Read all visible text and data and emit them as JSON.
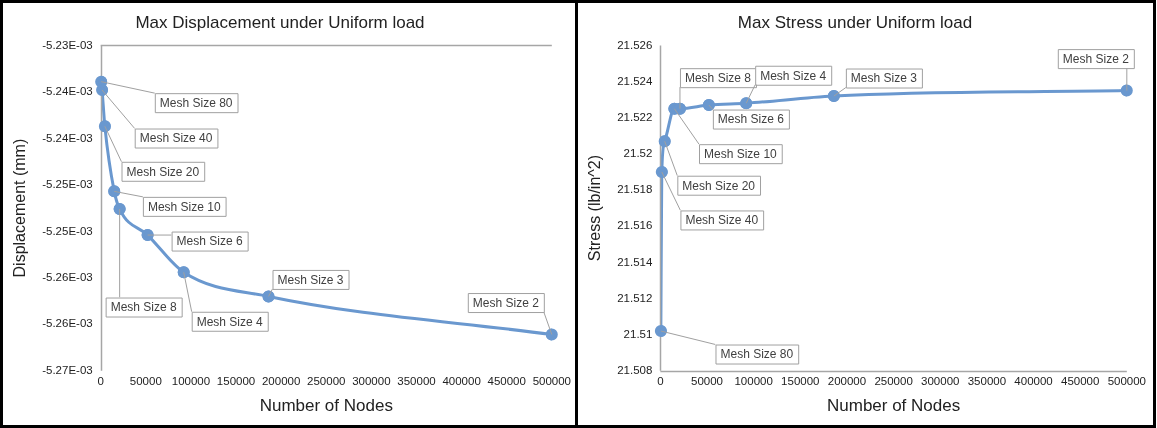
{
  "chart_data": [
    {
      "type": "line",
      "title": "Max Displacement under Uniform load",
      "xlabel": "Number of Nodes",
      "ylabel": "Displacement (mm)",
      "x": [
        500,
        1500,
        4600,
        15000,
        21000,
        52000,
        92000,
        186000,
        500000
      ],
      "series": [
        {
          "color": "#6a98cf",
          "values": [
            -0.0052339,
            -0.0052348,
            -0.0052387,
            -0.0052457,
            -0.0052476,
            -0.0052504,
            -0.0052544,
            -0.005257,
            -0.0052611
          ]
        }
      ],
      "xlim": [
        0,
        500000
      ],
      "xticks": [
        0,
        50000,
        100000,
        150000,
        200000,
        250000,
        300000,
        350000,
        400000,
        450000,
        500000
      ],
      "ylim": [
        -0.005265,
        -0.00523
      ],
      "yticks": [
        {
          "value": -0.00523,
          "label": "-5.23E-03"
        },
        {
          "value": -0.005235,
          "label": "-5.24E-03"
        },
        {
          "value": -0.00524,
          "label": "-5.24E-03"
        },
        {
          "value": -0.005245,
          "label": "-5.25E-03"
        },
        {
          "value": -0.00525,
          "label": "-5.25E-03"
        },
        {
          "value": -0.005255,
          "label": "-5.26E-03"
        },
        {
          "value": -0.00526,
          "label": "-5.26E-03"
        },
        {
          "value": -0.005265,
          "label": "-5.27E-03"
        }
      ],
      "marker": "circle",
      "legend": false,
      "grid": false,
      "annotations": [
        {
          "text": "Mesh Size 80",
          "x": 500,
          "y": -0.0052339
        },
        {
          "text": "Mesh Size 40",
          "x": 1500,
          "y": -0.0052348
        },
        {
          "text": "Mesh Size 20",
          "x": 4600,
          "y": -0.0052387
        },
        {
          "text": "Mesh Size 10",
          "x": 15000,
          "y": -0.0052457
        },
        {
          "text": "Mesh Size 8",
          "x": 21000,
          "y": -0.0052476
        },
        {
          "text": "Mesh Size 6",
          "x": 52000,
          "y": -0.0052504
        },
        {
          "text": "Mesh Size 4",
          "x": 92000,
          "y": -0.0052544
        },
        {
          "text": "Mesh Size 3",
          "x": 186000,
          "y": -0.005257
        },
        {
          "text": "Mesh Size 2",
          "x": 500000,
          "y": -0.0052611
        }
      ]
    },
    {
      "type": "line",
      "title": "Max Stress under Uniform load",
      "xlabel": "Number of Nodes",
      "ylabel": "Stress (lb/in^2)",
      "x": [
        500,
        1500,
        4600,
        15000,
        21000,
        52000,
        92000,
        186000,
        500000
      ],
      "series": [
        {
          "color": "#6a98cf",
          "values": [
            21.5102,
            21.519,
            21.5207,
            21.5225,
            21.5225,
            21.5227,
            21.5228,
            21.5232,
            21.5235
          ]
        }
      ],
      "xlim": [
        0,
        500000
      ],
      "xticks": [
        0,
        50000,
        100000,
        150000,
        200000,
        250000,
        300000,
        350000,
        400000,
        450000,
        500000
      ],
      "ylim": [
        21.508,
        21.526
      ],
      "yticks": [
        {
          "value": 21.508,
          "label": "21.508"
        },
        {
          "value": 21.51,
          "label": "21.51"
        },
        {
          "value": 21.512,
          "label": "21.512"
        },
        {
          "value": 21.514,
          "label": "21.514"
        },
        {
          "value": 21.516,
          "label": "21.516"
        },
        {
          "value": 21.518,
          "label": "21.518"
        },
        {
          "value": 21.52,
          "label": "21.52"
        },
        {
          "value": 21.522,
          "label": "21.522"
        },
        {
          "value": 21.524,
          "label": "21.524"
        },
        {
          "value": 21.526,
          "label": "21.526"
        }
      ],
      "marker": "circle",
      "legend": false,
      "grid": false,
      "annotations": [
        {
          "text": "Mesh Size 80",
          "x": 500,
          "y": 21.5102
        },
        {
          "text": "Mesh Size 40",
          "x": 1500,
          "y": 21.519
        },
        {
          "text": "Mesh Size 20",
          "x": 4600,
          "y": 21.5207
        },
        {
          "text": "Mesh Size 10",
          "x": 15000,
          "y": 21.5225
        },
        {
          "text": "Mesh Size 8",
          "x": 21000,
          "y": 21.5225
        },
        {
          "text": "Mesh Size 6",
          "x": 52000,
          "y": 21.5227
        },
        {
          "text": "Mesh Size 4",
          "x": 92000,
          "y": 21.5228
        },
        {
          "text": "Mesh Size 3",
          "x": 186000,
          "y": 21.5232
        },
        {
          "text": "Mesh Size 2",
          "x": 500000,
          "y": 21.5235
        }
      ]
    }
  ]
}
